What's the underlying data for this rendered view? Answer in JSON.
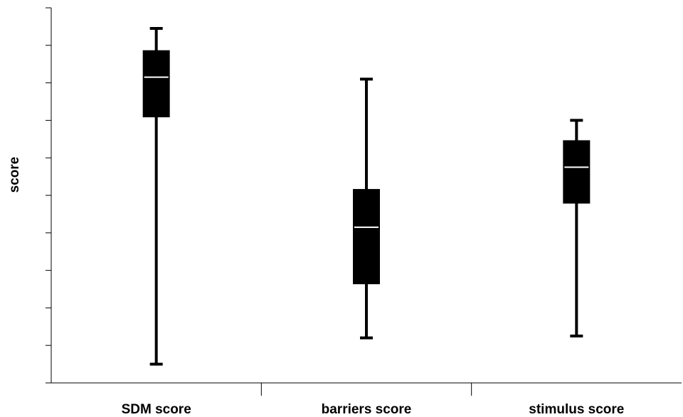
{
  "chart_data": {
    "type": "box",
    "title": "",
    "xlabel": "",
    "ylabel": "score",
    "ylim": [
      0,
      10
    ],
    "yticks": [
      0,
      1,
      2,
      3,
      4,
      5,
      6,
      7,
      8,
      9,
      10
    ],
    "grid": false,
    "categories": [
      "SDM score",
      "barriers score",
      "stimulus score"
    ],
    "boxes": [
      {
        "category": "SDM score",
        "min": 0.5,
        "q1": 7.1,
        "median": 8.15,
        "q3": 8.85,
        "max": 9.45
      },
      {
        "category": "barriers score",
        "min": 1.2,
        "q1": 2.65,
        "median": 4.15,
        "q3": 5.15,
        "max": 8.1
      },
      {
        "category": "stimulus score",
        "min": 1.25,
        "q1": 4.8,
        "median": 5.75,
        "q3": 6.45,
        "max": 7.0
      }
    ],
    "colors": {
      "box": "#000000",
      "median": "#ffffff",
      "axis": "#000000"
    }
  }
}
